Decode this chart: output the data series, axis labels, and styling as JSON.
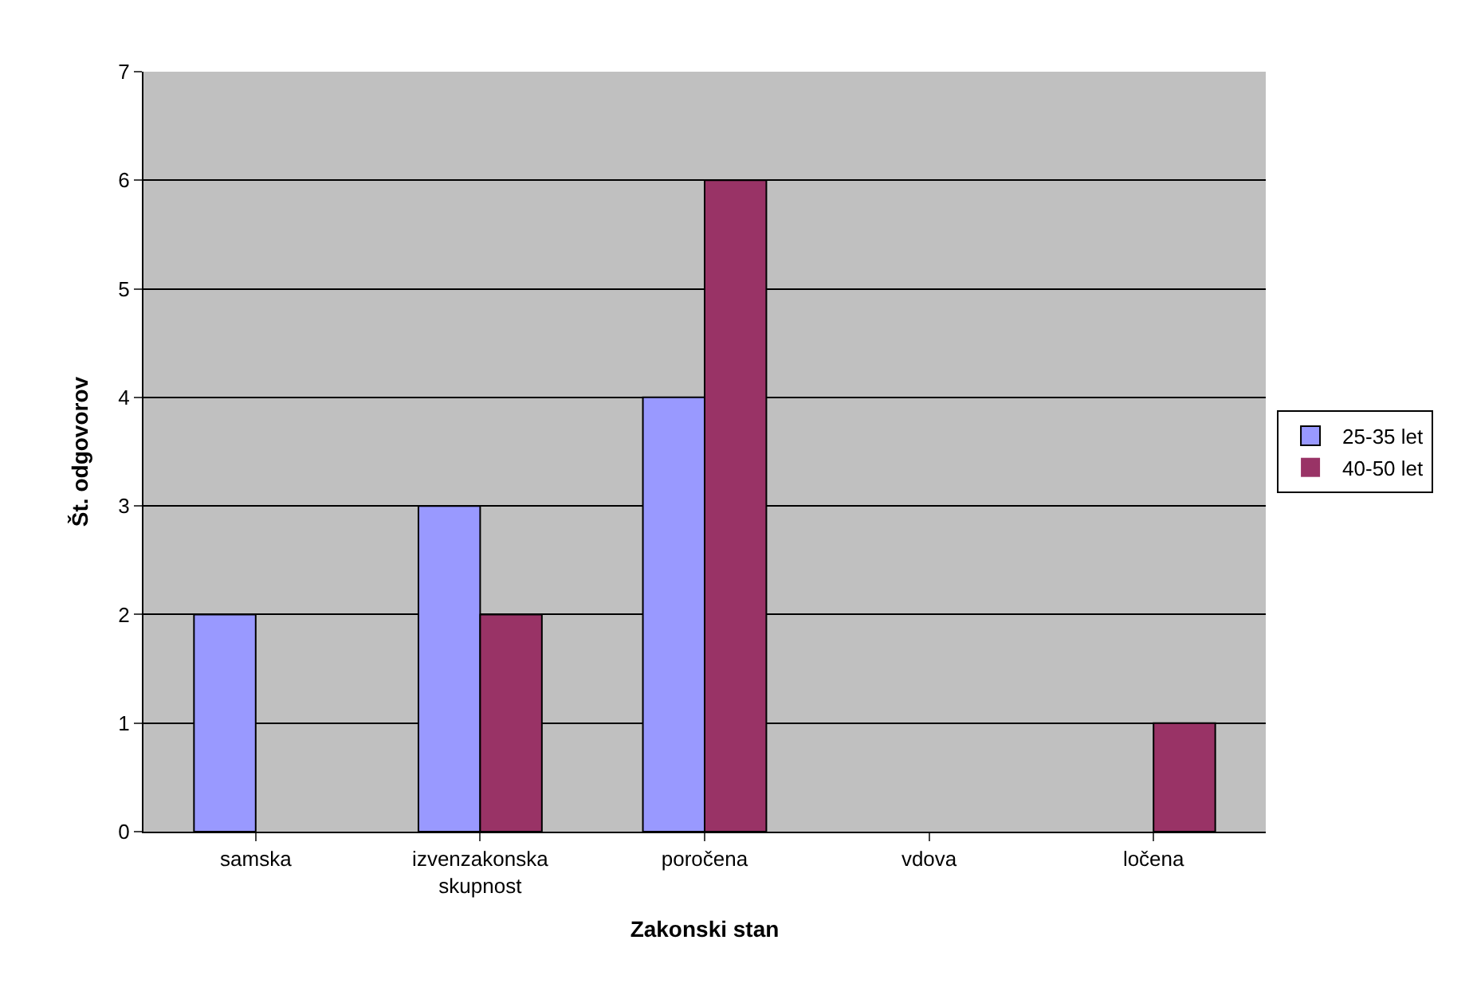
{
  "chart_data": {
    "type": "bar",
    "xlabel": "Zakonski stan",
    "ylabel": "Št. odgovorov",
    "categories": [
      "samska",
      "izvenzakonska skupnost",
      "poročena",
      "vdova",
      "ločena"
    ],
    "series": [
      {
        "name": "25-35 let",
        "color": "#9999ff",
        "values": [
          2,
          3,
          4,
          0,
          0
        ]
      },
      {
        "name": "40-50 let",
        "color": "#993366",
        "values": [
          0,
          2,
          6,
          0,
          1
        ]
      }
    ],
    "ylim": [
      0,
      7
    ],
    "yticks": [
      0,
      1,
      2,
      3,
      4,
      5,
      6,
      7
    ],
    "grid": "y",
    "legend": "right"
  }
}
